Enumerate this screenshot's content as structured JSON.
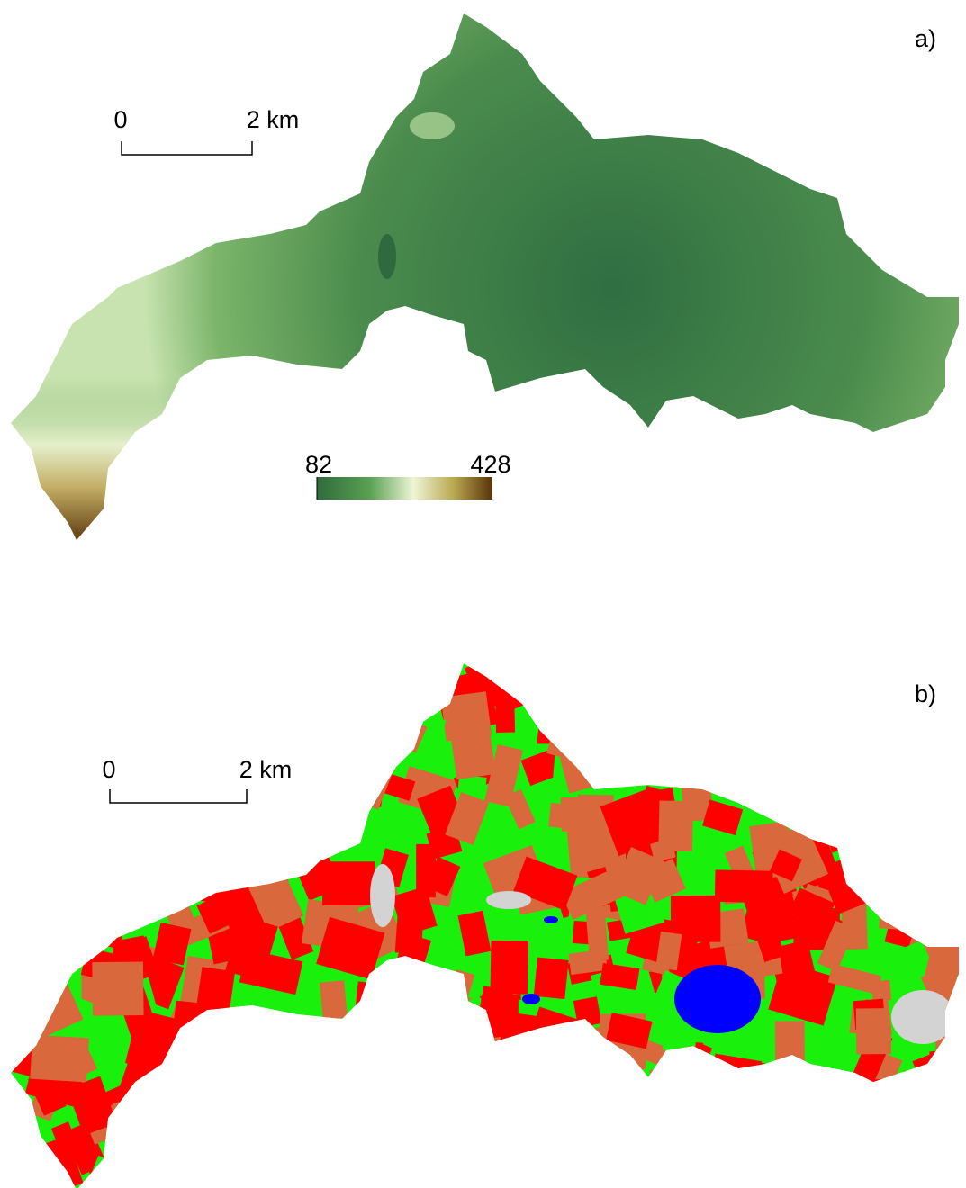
{
  "panels": [
    {
      "label": "a)",
      "scale_bar": {
        "start": "0",
        "end": "2 km"
      },
      "legend": {
        "min": 82,
        "max": 428
      }
    },
    {
      "label": "b)",
      "scale_bar": {
        "start": "0",
        "end": "2 km"
      }
    }
  ]
}
